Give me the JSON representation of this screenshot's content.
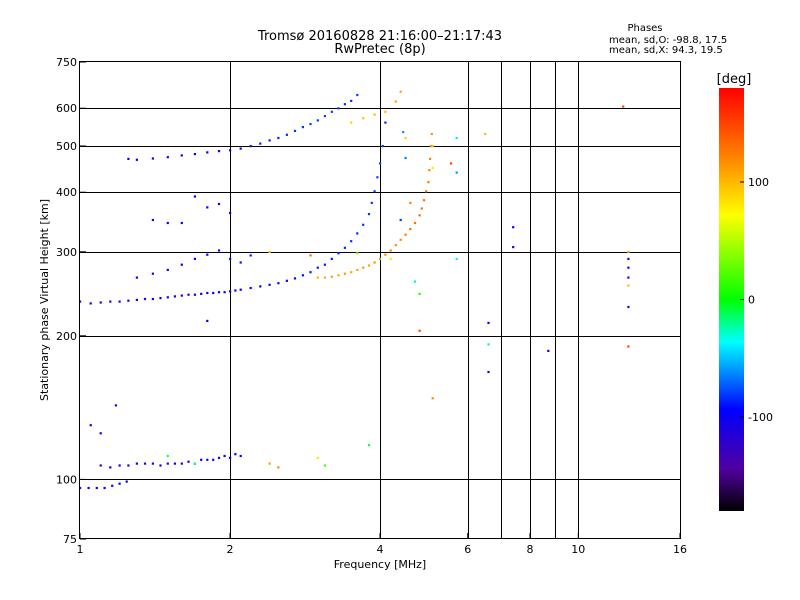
{
  "chart_data": {
    "type": "scatter",
    "title": "Tromsø 20160828 21:16:00–21:17:43",
    "subtitle": "RwPretec (8p)",
    "xlabel": "Frequency [MHz]",
    "ylabel": "Stationary phase Virtual Height [km]",
    "x_scale": "log2",
    "y_scale": "log",
    "xlim": [
      1,
      16
    ],
    "ylim": [
      75,
      750
    ],
    "x_ticks": [
      1,
      2,
      4,
      6,
      8,
      10,
      16
    ],
    "x_tick_labels": [
      "1",
      "2",
      "4",
      "6",
      "8",
      "10",
      "16"
    ],
    "x_gridlines": [
      2,
      4,
      6,
      7,
      8,
      9,
      10
    ],
    "y_ticks": [
      75,
      100,
      200,
      300,
      400,
      500,
      600,
      750
    ],
    "y_tick_labels": [
      "75",
      "100",
      "200",
      "300",
      "400",
      "500",
      "600",
      "750"
    ],
    "y_gridlines": [
      100,
      200,
      300,
      400,
      500,
      600
    ],
    "grid": true,
    "phase_stats": {
      "title": "Phases",
      "line1": "mean, sd,O: -98.8, 17.5",
      "line2": "mean, sd,X:  94.3, 19.5"
    },
    "colorbar": {
      "unit_label": "[deg]",
      "range": [
        -180,
        180
      ],
      "ticks": [
        100,
        0,
        -100
      ],
      "tick_labels": [
        "100",
        "0",
        "-100"
      ],
      "colors": [
        "#ff0000",
        "#ff8000",
        "#ffff00",
        "#00ff00",
        "#00ffff",
        "#0000ff",
        "#5000a0",
        "#000000"
      ]
    },
    "series": [
      {
        "points": [
          [
            1.0,
            96,
            -110
          ],
          [
            1.04,
            96,
            -108
          ],
          [
            1.08,
            96,
            -112
          ],
          [
            1.12,
            96,
            -104
          ],
          [
            1.16,
            97,
            -100
          ],
          [
            1.2,
            98,
            -96
          ],
          [
            1.24,
            99,
            -102
          ],
          [
            1.05,
            130,
            -100
          ],
          [
            1.1,
            125,
            -98
          ],
          [
            1.18,
            143,
            -90
          ],
          [
            1.1,
            107,
            -110
          ],
          [
            1.15,
            106,
            -105
          ],
          [
            1.2,
            107,
            -108
          ],
          [
            1.25,
            107,
            -100
          ],
          [
            1.3,
            108,
            -100
          ],
          [
            1.35,
            108,
            -104
          ],
          [
            1.4,
            108,
            -112
          ],
          [
            1.45,
            107,
            -110
          ],
          [
            1.5,
            108,
            -115
          ],
          [
            1.55,
            108,
            -108
          ],
          [
            1.6,
            108,
            -104
          ],
          [
            1.65,
            109,
            -106
          ],
          [
            1.7,
            108,
            -110
          ],
          [
            1.75,
            110,
            -100
          ],
          [
            1.8,
            110,
            -104
          ],
          [
            1.85,
            110,
            -102
          ],
          [
            1.9,
            111,
            -100
          ],
          [
            1.95,
            112,
            -96
          ],
          [
            2.0,
            111,
            -98
          ],
          [
            2.05,
            113,
            -95
          ],
          [
            2.1,
            112,
            -92
          ],
          [
            1.0,
            236,
            -120
          ],
          [
            1.05,
            234,
            -118
          ],
          [
            1.1,
            235,
            -116
          ],
          [
            1.15,
            236,
            -114
          ],
          [
            1.2,
            236,
            -110
          ],
          [
            1.25,
            237,
            -112
          ],
          [
            1.3,
            238,
            -108
          ],
          [
            1.35,
            239,
            -110
          ],
          [
            1.4,
            239,
            -110
          ],
          [
            1.45,
            240,
            -106
          ],
          [
            1.5,
            241,
            -104
          ],
          [
            1.55,
            242,
            -102
          ],
          [
            1.6,
            243,
            -100
          ],
          [
            1.65,
            244,
            -104
          ],
          [
            1.7,
            244,
            -100
          ],
          [
            1.75,
            245,
            -102
          ],
          [
            1.8,
            246,
            -100
          ],
          [
            1.85,
            246,
            -98
          ],
          [
            1.9,
            247,
            -98
          ],
          [
            1.95,
            247,
            -96
          ],
          [
            2.0,
            248,
            -100
          ],
          [
            2.05,
            249,
            -96
          ],
          [
            2.1,
            250,
            -98
          ],
          [
            2.2,
            252,
            -95
          ],
          [
            2.3,
            254,
            -95
          ],
          [
            2.4,
            256,
            -93
          ],
          [
            2.5,
            258,
            -93
          ],
          [
            2.6,
            261,
            -92
          ],
          [
            2.7,
            264,
            -92
          ],
          [
            2.8,
            268,
            -90
          ],
          [
            2.9,
            272,
            -88
          ],
          [
            3.0,
            278,
            -88
          ],
          [
            3.1,
            282,
            -86
          ],
          [
            3.2,
            290,
            -86
          ],
          [
            3.3,
            298,
            -85
          ],
          [
            3.4,
            306,
            -85
          ],
          [
            3.5,
            316,
            -84
          ],
          [
            3.6,
            328,
            -84
          ],
          [
            3.7,
            342,
            -82
          ],
          [
            3.8,
            360,
            -82
          ],
          [
            3.85,
            380,
            -80
          ],
          [
            3.9,
            402,
            -80
          ],
          [
            3.95,
            430,
            -78
          ],
          [
            4.0,
            460,
            -78
          ],
          [
            4.05,
            500,
            -80
          ],
          [
            4.1,
            560,
            -85
          ],
          [
            1.3,
            265,
            -100
          ],
          [
            1.4,
            270,
            -102
          ],
          [
            1.5,
            275,
            -98
          ],
          [
            1.6,
            282,
            -95
          ],
          [
            1.7,
            290,
            -95
          ],
          [
            1.8,
            296,
            -92
          ],
          [
            1.9,
            302,
            -92
          ],
          [
            2.0,
            290,
            -90
          ],
          [
            2.1,
            285,
            -90
          ],
          [
            2.2,
            295,
            -88
          ],
          [
            1.25,
            470,
            -100
          ],
          [
            1.3,
            468,
            -98
          ],
          [
            1.4,
            471,
            -100
          ],
          [
            1.5,
            474,
            -98
          ],
          [
            1.6,
            478,
            -96
          ],
          [
            1.7,
            481,
            -95
          ],
          [
            1.8,
            485,
            -95
          ],
          [
            1.9,
            488,
            -93
          ],
          [
            2.0,
            490,
            -92
          ],
          [
            2.1,
            494,
            -92
          ],
          [
            2.2,
            500,
            -90
          ],
          [
            2.3,
            506,
            -88
          ],
          [
            2.4,
            514,
            -88
          ],
          [
            2.5,
            520,
            -85
          ],
          [
            2.6,
            528,
            -85
          ],
          [
            2.7,
            538,
            -82
          ],
          [
            2.8,
            548,
            -82
          ],
          [
            2.9,
            556,
            -80
          ],
          [
            3.0,
            566,
            -80
          ],
          [
            3.1,
            578,
            -78
          ],
          [
            3.2,
            590,
            -80
          ],
          [
            3.3,
            600,
            -78
          ],
          [
            3.4,
            612,
            -82
          ],
          [
            3.5,
            622,
            -85
          ],
          [
            3.6,
            640,
            -80
          ],
          [
            1.4,
            350,
            -100
          ],
          [
            1.5,
            345,
            -96
          ],
          [
            1.6,
            345,
            -92
          ],
          [
            1.7,
            392,
            -100
          ],
          [
            1.8,
            372,
            -98
          ],
          [
            1.9,
            378,
            -95
          ],
          [
            2.0,
            362,
            -92
          ],
          [
            1.8,
            215,
            -100
          ],
          [
            1.7,
            108,
            -20
          ],
          [
            1.5,
            112,
            -20
          ],
          [
            2.4,
            108,
            110
          ],
          [
            2.5,
            106,
            120
          ],
          [
            3.0,
            111,
            80
          ],
          [
            3.1,
            107,
            20
          ],
          [
            3.8,
            118,
            -10
          ],
          [
            4.45,
            535,
            -60
          ],
          [
            4.5,
            472,
            -65
          ],
          [
            4.4,
            350,
            -80
          ],
          [
            4.7,
            260,
            -20
          ],
          [
            4.8,
            245,
            10
          ],
          [
            5.7,
            520,
            -40
          ],
          [
            5.7,
            440,
            -60
          ],
          [
            6.6,
            213,
            -100
          ],
          [
            6.6,
            192,
            -20
          ],
          [
            6.6,
            168,
            -100
          ],
          [
            7.4,
            338,
            -100
          ],
          [
            7.4,
            307,
            -100
          ],
          [
            8.7,
            186,
            -100
          ],
          [
            12.6,
            290,
            -110
          ],
          [
            12.6,
            278,
            -110
          ],
          [
            12.6,
            265,
            -120
          ],
          [
            12.6,
            230,
            -120
          ],
          [
            5.1,
            148,
            120
          ],
          [
            5.7,
            290,
            -40
          ]
        ]
      },
      {
        "points": [
          [
            3.0,
            265,
            100
          ],
          [
            3.1,
            265,
            105
          ],
          [
            3.2,
            266,
            110
          ],
          [
            3.3,
            268,
            108
          ],
          [
            3.4,
            270,
            112
          ],
          [
            3.5,
            272,
            110
          ],
          [
            3.6,
            275,
            108
          ],
          [
            3.7,
            278,
            112
          ],
          [
            3.8,
            281,
            110
          ],
          [
            3.9,
            285,
            115
          ],
          [
            4.0,
            290,
            112
          ],
          [
            4.1,
            296,
            118
          ],
          [
            4.2,
            302,
            120
          ],
          [
            4.3,
            310,
            115
          ],
          [
            4.4,
            318,
            118
          ],
          [
            4.5,
            326,
            125
          ],
          [
            4.6,
            335,
            130
          ],
          [
            4.7,
            345,
            128
          ],
          [
            4.8,
            358,
            132
          ],
          [
            4.85,
            370,
            130
          ],
          [
            4.9,
            385,
            130
          ],
          [
            4.95,
            402,
            128
          ],
          [
            5.0,
            420,
            125
          ],
          [
            5.02,
            445,
            122
          ],
          [
            5.04,
            470,
            120
          ],
          [
            5.06,
            500,
            118
          ],
          [
            5.08,
            530,
            115
          ],
          [
            3.5,
            560,
            90
          ],
          [
            3.7,
            572,
            95
          ],
          [
            3.9,
            582,
            100
          ],
          [
            4.1,
            590,
            100
          ],
          [
            4.3,
            620,
            108
          ],
          [
            4.4,
            650,
            110
          ],
          [
            4.2,
            290,
            60
          ],
          [
            3.6,
            298,
            40
          ],
          [
            4.8,
            205,
            150
          ],
          [
            5.1,
            450,
            60
          ],
          [
            5.1,
            500,
            100
          ],
          [
            4.5,
            520,
            90
          ],
          [
            4.6,
            380,
            120
          ],
          [
            2.9,
            295,
            130
          ],
          [
            2.4,
            300,
            100
          ],
          [
            6.5,
            530,
            100
          ],
          [
            12.3,
            605,
            150
          ],
          [
            12.6,
            190,
            150
          ],
          [
            12.6,
            300,
            110
          ],
          [
            12.6,
            255,
            100
          ],
          [
            5.55,
            460,
            150
          ]
        ]
      }
    ]
  }
}
